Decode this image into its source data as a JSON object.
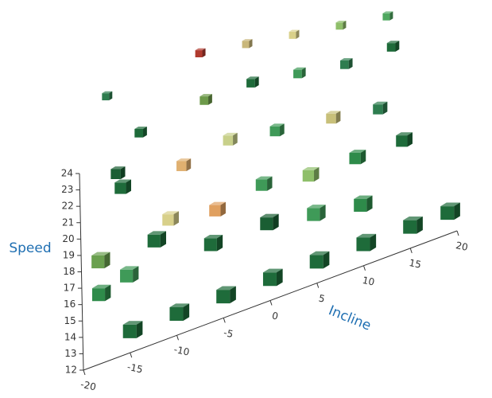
{
  "chart_data": {
    "type": "scatter3d",
    "xlabel": "Incline",
    "ylabel": "Speed",
    "xlim": [
      -20,
      20
    ],
    "xticks": [
      -20,
      -15,
      -10,
      -5,
      0,
      5,
      10,
      15,
      20
    ],
    "ylim": [
      12,
      24
    ],
    "yticks": [
      12,
      13,
      14,
      15,
      16,
      17,
      18,
      19,
      20,
      21,
      22,
      23,
      24
    ],
    "zlim": [
      0,
      10
    ],
    "series": [
      {
        "x": [
          -15,
          -5,
          0,
          5,
          10,
          15,
          -12,
          -5,
          0,
          5,
          10,
          15,
          -15,
          -8,
          -3,
          2,
          8,
          13,
          -15,
          -10,
          -5,
          0,
          5,
          10,
          15,
          -18,
          -12,
          -6,
          0,
          5,
          10,
          -18,
          -15,
          -15,
          -10,
          -5,
          0,
          5,
          10,
          15,
          19
        ],
        "values": [
          21.5,
          22,
          21.5,
          21,
          20.5,
          20,
          20,
          20.5,
          20.5,
          20,
          19.5,
          19.5,
          19.5,
          18.5,
          19,
          18.5,
          18,
          17.5,
          20,
          17,
          16.5,
          17,
          16.5,
          16.5,
          16.5,
          17.5,
          17.5,
          16,
          16,
          15.5,
          15,
          15.5,
          16,
          13.3,
          13.3,
          13.3,
          13.3,
          13.3,
          13.3,
          13.3,
          13.3
        ],
        "z": [
          9,
          9,
          9,
          9,
          9,
          9,
          7,
          7,
          7,
          7,
          7,
          7,
          5,
          5,
          5,
          5,
          5,
          5,
          3,
          3,
          3,
          3,
          3,
          3,
          3,
          1,
          1,
          1,
          1,
          1,
          1,
          1,
          1,
          0,
          0,
          0,
          0,
          0,
          0,
          0,
          0
        ],
        "colors": [
          "#2e7d4f",
          "#b03a2e",
          "#c9b77a",
          "#d9d08a",
          "#8fbf6a",
          "#4fa860",
          "#1e6b3a",
          "#6d9a4a",
          "#1e6b3a",
          "#3f9a58",
          "#2e7d4f",
          "#1e6b3a",
          "#1a5e33",
          "#e0b070",
          "#c8d08a",
          "#3f9a58",
          "#c8c07a",
          "#2e7d4f",
          "#1e6b3a",
          "#d8d08a",
          "#e0a060",
          "#3f9a58",
          "#8fbf6a",
          "#2e8b4a",
          "#1e6b3a",
          "#6aa04f",
          "#1e6b3a",
          "#1e6b3a",
          "#1a5e33",
          "#3f9a58",
          "#2e8b4a",
          "#2e8b4a",
          "#3f9a58",
          "#1e6b3a",
          "#1e6b3a",
          "#1e6b3a",
          "#1e6b3a",
          "#1e6b3a",
          "#1e6b3a",
          "#1e6b3a",
          "#1e6b3a"
        ]
      }
    ]
  }
}
